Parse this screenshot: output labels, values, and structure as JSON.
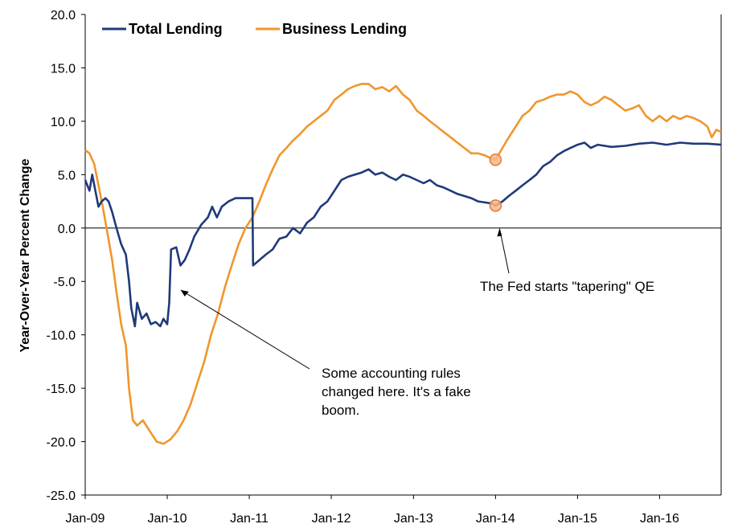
{
  "chart_data": {
    "type": "line",
    "title": "",
    "xlabel": "",
    "ylabel": "Year-Over-Year Percent Change",
    "ylim": [
      -25.0,
      20.0
    ],
    "yticks": [
      20.0,
      15.0,
      10.0,
      5.0,
      0.0,
      -5.0,
      -10.0,
      -15.0,
      -20.0,
      -25.0
    ],
    "ytick_labels": [
      "20.0",
      "15.0",
      "10.0",
      "5.0",
      "0.0",
      "-5.0",
      "-10.0",
      "-15.0",
      "-20.0",
      "-25.0"
    ],
    "xlim": [
      "2009-01",
      "2016-10"
    ],
    "xticks": [
      {
        "date": "2009-01",
        "label": "Jan-09"
      },
      {
        "date": "2010-01",
        "label": "Jan-10"
      },
      {
        "date": "2011-01",
        "label": "Jan-11"
      },
      {
        "date": "2012-01",
        "label": "Jan-12"
      },
      {
        "date": "2013-01",
        "label": "Jan-13"
      },
      {
        "date": "2014-01",
        "label": "Jan-14"
      },
      {
        "date": "2015-01",
        "label": "Jan-15"
      },
      {
        "date": "2016-01",
        "label": "Jan-16"
      }
    ],
    "legend_position": "top-left",
    "grid": false,
    "series": [
      {
        "name": "Total Lending",
        "color": "#1f3a7a",
        "points": [
          [
            "2009-01-01",
            4.5
          ],
          [
            "2009-01-20",
            3.5
          ],
          [
            "2009-02-01",
            5.0
          ],
          [
            "2009-02-15",
            3.5
          ],
          [
            "2009-03-01",
            2.0
          ],
          [
            "2009-03-15",
            2.5
          ],
          [
            "2009-04-01",
            2.8
          ],
          [
            "2009-04-15",
            2.5
          ],
          [
            "2009-05-01",
            1.5
          ],
          [
            "2009-05-20",
            0.0
          ],
          [
            "2009-06-10",
            -1.5
          ],
          [
            "2009-07-01",
            -2.5
          ],
          [
            "2009-07-15",
            -5.0
          ],
          [
            "2009-07-25",
            -7.5
          ],
          [
            "2009-08-10",
            -9.2
          ],
          [
            "2009-08-20",
            -7.0
          ],
          [
            "2009-09-10",
            -8.5
          ],
          [
            "2009-10-01",
            -8.0
          ],
          [
            "2009-10-20",
            -9.0
          ],
          [
            "2009-11-10",
            -8.8
          ],
          [
            "2009-12-01",
            -9.2
          ],
          [
            "2009-12-15",
            -8.5
          ],
          [
            "2010-01-01",
            -9.0
          ],
          [
            "2010-01-10",
            -7.0
          ],
          [
            "2010-01-18",
            -2.0
          ],
          [
            "2010-02-10",
            -1.8
          ],
          [
            "2010-03-01",
            -3.5
          ],
          [
            "2010-03-20",
            -3.0
          ],
          [
            "2010-04-10",
            -2.0
          ],
          [
            "2010-05-01",
            -0.8
          ],
          [
            "2010-06-01",
            0.3
          ],
          [
            "2010-07-01",
            1.0
          ],
          [
            "2010-07-20",
            2.0
          ],
          [
            "2010-08-10",
            1.0
          ],
          [
            "2010-09-01",
            2.0
          ],
          [
            "2010-10-01",
            2.5
          ],
          [
            "2010-11-01",
            2.8
          ],
          [
            "2010-12-01",
            2.8
          ],
          [
            "2011-01-15",
            2.8
          ],
          [
            "2011-01-18",
            -3.5
          ],
          [
            "2011-02-15",
            -3.0
          ],
          [
            "2011-03-15",
            -2.5
          ],
          [
            "2011-04-15",
            -2.0
          ],
          [
            "2011-05-15",
            -1.0
          ],
          [
            "2011-06-15",
            -0.8
          ],
          [
            "2011-07-15",
            0.0
          ],
          [
            "2011-08-15",
            -0.5
          ],
          [
            "2011-09-15",
            0.5
          ],
          [
            "2011-10-15",
            1.0
          ],
          [
            "2011-11-15",
            2.0
          ],
          [
            "2011-12-15",
            2.5
          ],
          [
            "2012-01-15",
            3.5
          ],
          [
            "2012-02-15",
            4.5
          ],
          [
            "2012-03-15",
            4.8
          ],
          [
            "2012-04-15",
            5.0
          ],
          [
            "2012-05-15",
            5.2
          ],
          [
            "2012-06-15",
            5.5
          ],
          [
            "2012-07-15",
            5.0
          ],
          [
            "2012-08-15",
            5.2
          ],
          [
            "2012-09-15",
            4.8
          ],
          [
            "2012-10-15",
            4.5
          ],
          [
            "2012-11-15",
            5.0
          ],
          [
            "2012-12-15",
            4.8
          ],
          [
            "2013-01-15",
            4.5
          ],
          [
            "2013-02-15",
            4.2
          ],
          [
            "2013-03-15",
            4.5
          ],
          [
            "2013-04-15",
            4.0
          ],
          [
            "2013-05-15",
            3.8
          ],
          [
            "2013-06-15",
            3.5
          ],
          [
            "2013-07-15",
            3.2
          ],
          [
            "2013-08-15",
            3.0
          ],
          [
            "2013-09-15",
            2.8
          ],
          [
            "2013-10-15",
            2.5
          ],
          [
            "2013-11-15",
            2.4
          ],
          [
            "2013-12-15",
            2.3
          ],
          [
            "2014-01-01",
            2.1
          ],
          [
            "2014-02-01",
            2.5
          ],
          [
            "2014-03-01",
            3.0
          ],
          [
            "2014-04-01",
            3.5
          ],
          [
            "2014-05-01",
            4.0
          ],
          [
            "2014-06-01",
            4.5
          ],
          [
            "2014-07-01",
            5.0
          ],
          [
            "2014-08-01",
            5.8
          ],
          [
            "2014-09-01",
            6.2
          ],
          [
            "2014-10-01",
            6.8
          ],
          [
            "2014-11-01",
            7.2
          ],
          [
            "2014-12-01",
            7.5
          ],
          [
            "2015-01-01",
            7.8
          ],
          [
            "2015-02-01",
            8.0
          ],
          [
            "2015-03-01",
            7.5
          ],
          [
            "2015-04-01",
            7.8
          ],
          [
            "2015-06-01",
            7.6
          ],
          [
            "2015-08-01",
            7.7
          ],
          [
            "2015-10-01",
            7.9
          ],
          [
            "2015-12-01",
            8.0
          ],
          [
            "2016-02-01",
            7.8
          ],
          [
            "2016-04-01",
            8.0
          ],
          [
            "2016-06-01",
            7.9
          ],
          [
            "2016-08-01",
            7.9
          ],
          [
            "2016-10-01",
            7.8
          ]
        ]
      },
      {
        "name": "Business Lending",
        "color": "#f0962d",
        "points": [
          [
            "2009-01-01",
            7.3
          ],
          [
            "2009-01-20",
            7.0
          ],
          [
            "2009-02-10",
            6.0
          ],
          [
            "2009-03-01",
            4.0
          ],
          [
            "2009-03-20",
            2.0
          ],
          [
            "2009-04-10",
            -0.5
          ],
          [
            "2009-05-01",
            -3.0
          ],
          [
            "2009-05-20",
            -6.0
          ],
          [
            "2009-06-10",
            -9.0
          ],
          [
            "2009-07-01",
            -11.0
          ],
          [
            "2009-07-15",
            -15.0
          ],
          [
            "2009-08-01",
            -18.0
          ],
          [
            "2009-08-20",
            -18.5
          ],
          [
            "2009-09-15",
            -18.0
          ],
          [
            "2009-10-15",
            -19.0
          ],
          [
            "2009-11-15",
            -20.0
          ],
          [
            "2009-12-15",
            -20.2
          ],
          [
            "2010-01-15",
            -19.8
          ],
          [
            "2010-02-15",
            -19.0
          ],
          [
            "2010-03-15",
            -18.0
          ],
          [
            "2010-04-15",
            -16.5
          ],
          [
            "2010-05-15",
            -14.5
          ],
          [
            "2010-06-15",
            -12.5
          ],
          [
            "2010-07-15",
            -10.0
          ],
          [
            "2010-08-15",
            -8.0
          ],
          [
            "2010-09-15",
            -5.5
          ],
          [
            "2010-10-15",
            -3.5
          ],
          [
            "2010-11-15",
            -1.5
          ],
          [
            "2010-12-15",
            0.0
          ],
          [
            "2011-01-15",
            1.0
          ],
          [
            "2011-02-15",
            2.5
          ],
          [
            "2011-03-15",
            4.0
          ],
          [
            "2011-04-15",
            5.5
          ],
          [
            "2011-05-15",
            6.8
          ],
          [
            "2011-06-15",
            7.5
          ],
          [
            "2011-07-15",
            8.2
          ],
          [
            "2011-08-15",
            8.8
          ],
          [
            "2011-09-15",
            9.5
          ],
          [
            "2011-10-15",
            10.0
          ],
          [
            "2011-11-15",
            10.5
          ],
          [
            "2011-12-15",
            11.0
          ],
          [
            "2012-01-15",
            12.0
          ],
          [
            "2012-02-15",
            12.5
          ],
          [
            "2012-03-15",
            13.0
          ],
          [
            "2012-04-15",
            13.3
          ],
          [
            "2012-05-15",
            13.5
          ],
          [
            "2012-06-15",
            13.5
          ],
          [
            "2012-07-15",
            13.0
          ],
          [
            "2012-08-15",
            13.2
          ],
          [
            "2012-09-15",
            12.8
          ],
          [
            "2012-10-15",
            13.3
          ],
          [
            "2012-11-15",
            12.5
          ],
          [
            "2012-12-15",
            12.0
          ],
          [
            "2013-01-15",
            11.0
          ],
          [
            "2013-02-15",
            10.5
          ],
          [
            "2013-03-15",
            10.0
          ],
          [
            "2013-04-15",
            9.5
          ],
          [
            "2013-05-15",
            9.0
          ],
          [
            "2013-06-15",
            8.5
          ],
          [
            "2013-07-15",
            8.0
          ],
          [
            "2013-08-15",
            7.5
          ],
          [
            "2013-09-15",
            7.0
          ],
          [
            "2013-10-15",
            7.0
          ],
          [
            "2013-11-15",
            6.8
          ],
          [
            "2013-12-15",
            6.5
          ],
          [
            "2014-01-01",
            6.4
          ],
          [
            "2014-02-01",
            7.5
          ],
          [
            "2014-03-01",
            8.5
          ],
          [
            "2014-04-01",
            9.5
          ],
          [
            "2014-05-01",
            10.5
          ],
          [
            "2014-06-01",
            11.0
          ],
          [
            "2014-07-01",
            11.8
          ],
          [
            "2014-08-01",
            12.0
          ],
          [
            "2014-09-01",
            12.3
          ],
          [
            "2014-10-01",
            12.5
          ],
          [
            "2014-11-01",
            12.5
          ],
          [
            "2014-12-01",
            12.8
          ],
          [
            "2015-01-01",
            12.5
          ],
          [
            "2015-02-01",
            11.8
          ],
          [
            "2015-03-01",
            11.5
          ],
          [
            "2015-04-01",
            11.8
          ],
          [
            "2015-05-01",
            12.3
          ],
          [
            "2015-06-01",
            12.0
          ],
          [
            "2015-07-01",
            11.5
          ],
          [
            "2015-08-01",
            11.0
          ],
          [
            "2015-09-01",
            11.2
          ],
          [
            "2015-10-01",
            11.5
          ],
          [
            "2015-11-01",
            10.5
          ],
          [
            "2015-12-01",
            10.0
          ],
          [
            "2016-01-01",
            10.5
          ],
          [
            "2016-02-01",
            10.0
          ],
          [
            "2016-03-01",
            10.5
          ],
          [
            "2016-04-01",
            10.2
          ],
          [
            "2016-05-01",
            10.5
          ],
          [
            "2016-06-01",
            10.3
          ],
          [
            "2016-07-01",
            10.0
          ],
          [
            "2016-08-01",
            9.5
          ],
          [
            "2016-08-20",
            8.5
          ],
          [
            "2016-09-10",
            9.2
          ],
          [
            "2016-10-01",
            9.0
          ]
        ]
      }
    ],
    "markers": [
      {
        "series": "Business Lending",
        "date": "2014-01-01",
        "value": 6.4
      },
      {
        "series": "Total Lending",
        "date": "2014-01-01",
        "value": 2.1
      }
    ],
    "annotations": [
      {
        "id": "accounting",
        "lines": [
          "Some accounting rules",
          "changed here. It's a fake",
          "boom."
        ],
        "date": "2010-01-18",
        "value": -5.5
      },
      {
        "id": "tapering",
        "lines": [
          "The Fed starts \"tapering\" QE"
        ],
        "date": "2014-01-01",
        "value": -0.2
      }
    ]
  }
}
